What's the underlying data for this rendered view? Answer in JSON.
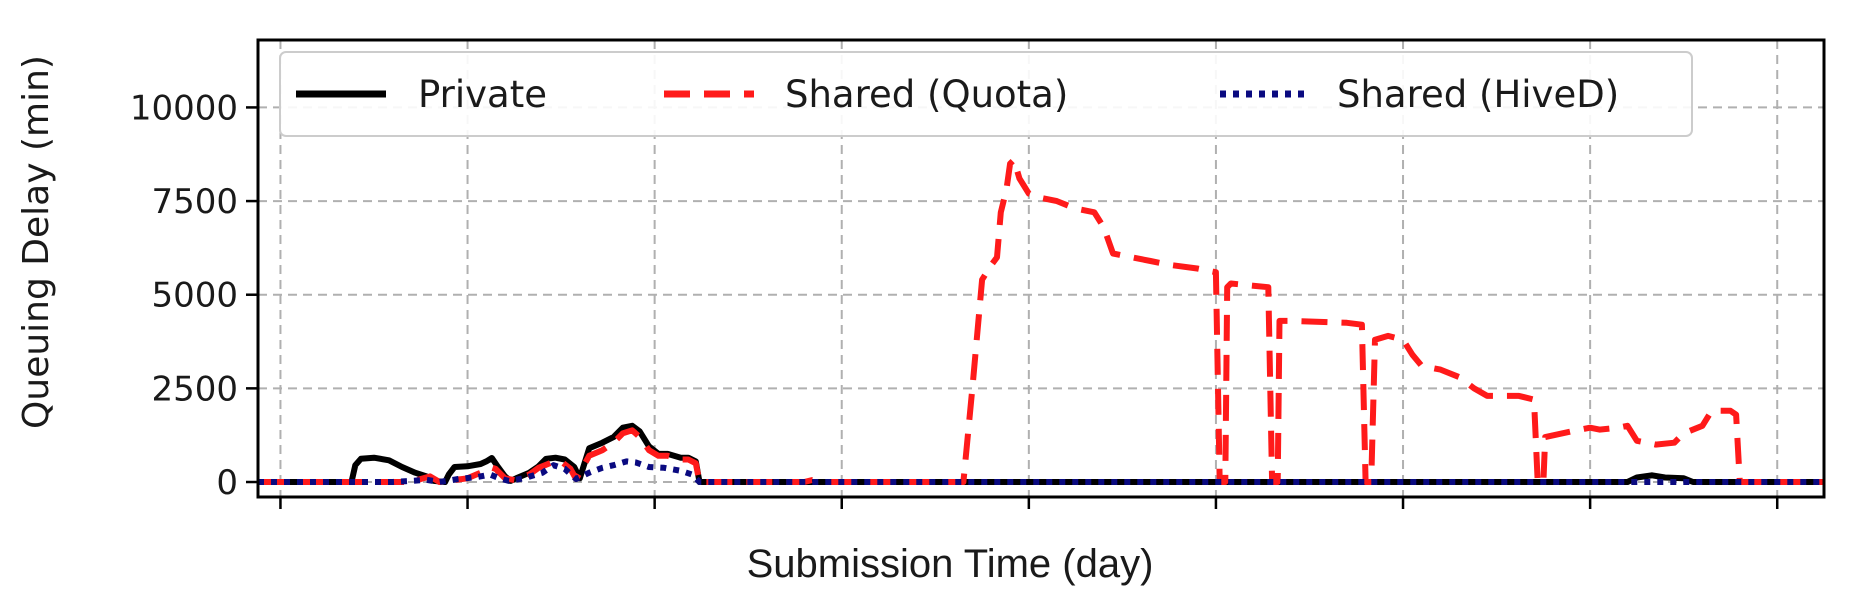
{
  "chart_data": {
    "type": "line",
    "title": "",
    "xlabel": "Submission Time (day)",
    "ylabel": "Queuing Delay (min)",
    "xlim": [
      -0.12,
      8.25
    ],
    "ylim": [
      -400,
      11800
    ],
    "x_ticks": [
      0,
      1,
      2,
      3,
      4,
      5,
      6,
      7,
      8
    ],
    "x_tick_labels": [],
    "y_ticks": [
      0,
      2500,
      5000,
      7500,
      10000
    ],
    "y_tick_labels": [
      "0",
      "2500",
      "5000",
      "7500",
      "10000"
    ],
    "grid": true,
    "legend_position": "top",
    "series": [
      {
        "name": "Private",
        "color": "#000000",
        "style": "solid",
        "points": [
          [
            -0.12,
            0
          ],
          [
            0.38,
            0
          ],
          [
            0.4,
            450
          ],
          [
            0.43,
            620
          ],
          [
            0.5,
            650
          ],
          [
            0.58,
            580
          ],
          [
            0.65,
            400
          ],
          [
            0.72,
            250
          ],
          [
            0.78,
            150
          ],
          [
            0.82,
            30
          ],
          [
            0.88,
            0
          ],
          [
            0.9,
            200
          ],
          [
            0.93,
            400
          ],
          [
            1.0,
            420
          ],
          [
            1.07,
            480
          ],
          [
            1.1,
            550
          ],
          [
            1.13,
            640
          ],
          [
            1.16,
            420
          ],
          [
            1.2,
            150
          ],
          [
            1.23,
            30
          ],
          [
            1.26,
            100
          ],
          [
            1.33,
            250
          ],
          [
            1.38,
            420
          ],
          [
            1.42,
            620
          ],
          [
            1.47,
            650
          ],
          [
            1.52,
            600
          ],
          [
            1.57,
            400
          ],
          [
            1.6,
            100
          ],
          [
            1.65,
            900
          ],
          [
            1.72,
            1050
          ],
          [
            1.78,
            1200
          ],
          [
            1.83,
            1450
          ],
          [
            1.88,
            1500
          ],
          [
            1.92,
            1350
          ],
          [
            1.97,
            950
          ],
          [
            2.02,
            750
          ],
          [
            2.07,
            750
          ],
          [
            2.14,
            650
          ],
          [
            2.18,
            650
          ],
          [
            2.22,
            550
          ],
          [
            2.24,
            0
          ],
          [
            7.2,
            0
          ],
          [
            7.25,
            120
          ],
          [
            7.33,
            180
          ],
          [
            7.4,
            120
          ],
          [
            7.5,
            100
          ],
          [
            7.55,
            0
          ],
          [
            8.25,
            0
          ]
        ]
      },
      {
        "name": "Shared (Quota)",
        "color": "#ff1a1a",
        "style": "dashed",
        "points": [
          [
            -0.12,
            0
          ],
          [
            0.7,
            0
          ],
          [
            0.75,
            80
          ],
          [
            0.8,
            150
          ],
          [
            0.85,
            0
          ],
          [
            1.0,
            100
          ],
          [
            1.07,
            250
          ],
          [
            1.12,
            400
          ],
          [
            1.15,
            350
          ],
          [
            1.2,
            100
          ],
          [
            1.25,
            50
          ],
          [
            1.33,
            200
          ],
          [
            1.38,
            380
          ],
          [
            1.45,
            520
          ],
          [
            1.5,
            550
          ],
          [
            1.55,
            350
          ],
          [
            1.58,
            80
          ],
          [
            1.65,
            700
          ],
          [
            1.72,
            850
          ],
          [
            1.78,
            1050
          ],
          [
            1.83,
            1300
          ],
          [
            1.88,
            1380
          ],
          [
            1.92,
            1200
          ],
          [
            1.97,
            850
          ],
          [
            2.02,
            700
          ],
          [
            2.07,
            700
          ],
          [
            2.14,
            600
          ],
          [
            2.18,
            600
          ],
          [
            2.22,
            500
          ],
          [
            2.24,
            0
          ],
          [
            2.8,
            0
          ],
          [
            2.84,
            50
          ],
          [
            2.88,
            0
          ],
          [
            3.65,
            0
          ],
          [
            3.7,
            2600
          ],
          [
            3.75,
            5400
          ],
          [
            3.8,
            5800
          ],
          [
            3.83,
            6000
          ],
          [
            3.85,
            7200
          ],
          [
            3.88,
            7800
          ],
          [
            3.9,
            8500
          ],
          [
            3.92,
            8600
          ],
          [
            3.95,
            8100
          ],
          [
            4.0,
            7700
          ],
          [
            4.05,
            7600
          ],
          [
            4.15,
            7500
          ],
          [
            4.25,
            7300
          ],
          [
            4.35,
            7200
          ],
          [
            4.4,
            6800
          ],
          [
            4.45,
            6100
          ],
          [
            4.55,
            6000
          ],
          [
            4.65,
            5900
          ],
          [
            4.75,
            5800
          ],
          [
            4.9,
            5700
          ],
          [
            5.0,
            5600
          ],
          [
            5.02,
            0
          ],
          [
            5.05,
            0
          ],
          [
            5.06,
            5200
          ],
          [
            5.08,
            5300
          ],
          [
            5.28,
            5200
          ],
          [
            5.3,
            0
          ],
          [
            5.33,
            0
          ],
          [
            5.34,
            4300
          ],
          [
            5.4,
            4300
          ],
          [
            5.7,
            4250
          ],
          [
            5.78,
            4200
          ],
          [
            5.8,
            0
          ],
          [
            5.83,
            0
          ],
          [
            5.85,
            3800
          ],
          [
            5.92,
            3900
          ],
          [
            6.0,
            3800
          ],
          [
            6.05,
            3400
          ],
          [
            6.1,
            3100
          ],
          [
            6.2,
            3000
          ],
          [
            6.3,
            2800
          ],
          [
            6.38,
            2500
          ],
          [
            6.45,
            2300
          ],
          [
            6.55,
            2300
          ],
          [
            6.62,
            2300
          ],
          [
            6.7,
            2200
          ],
          [
            6.72,
            0
          ],
          [
            6.75,
            0
          ],
          [
            6.76,
            1200
          ],
          [
            6.9,
            1350
          ],
          [
            7.0,
            1450
          ],
          [
            7.05,
            1400
          ],
          [
            7.15,
            1450
          ],
          [
            7.2,
            1500
          ],
          [
            7.25,
            1100
          ],
          [
            7.35,
            1000
          ],
          [
            7.45,
            1050
          ],
          [
            7.5,
            1300
          ],
          [
            7.6,
            1500
          ],
          [
            7.65,
            1900
          ],
          [
            7.75,
            1900
          ],
          [
            7.78,
            1800
          ],
          [
            7.8,
            0
          ],
          [
            8.25,
            0
          ]
        ]
      },
      {
        "name": "Shared (HiveD)",
        "color": "#0a0a80",
        "style": "dotted",
        "points": [
          [
            -0.12,
            0
          ],
          [
            0.6,
            0
          ],
          [
            0.7,
            30
          ],
          [
            0.78,
            60
          ],
          [
            0.85,
            0
          ],
          [
            0.95,
            80
          ],
          [
            1.05,
            130
          ],
          [
            1.12,
            200
          ],
          [
            1.17,
            100
          ],
          [
            1.22,
            30
          ],
          [
            1.3,
            100
          ],
          [
            1.4,
            250
          ],
          [
            1.46,
            450
          ],
          [
            1.52,
            350
          ],
          [
            1.58,
            80
          ],
          [
            1.65,
            250
          ],
          [
            1.72,
            380
          ],
          [
            1.78,
            450
          ],
          [
            1.85,
            550
          ],
          [
            1.9,
            520
          ],
          [
            1.97,
            400
          ],
          [
            2.05,
            380
          ],
          [
            2.14,
            300
          ],
          [
            2.2,
            200
          ],
          [
            2.24,
            0
          ],
          [
            8.25,
            0
          ]
        ]
      }
    ]
  }
}
